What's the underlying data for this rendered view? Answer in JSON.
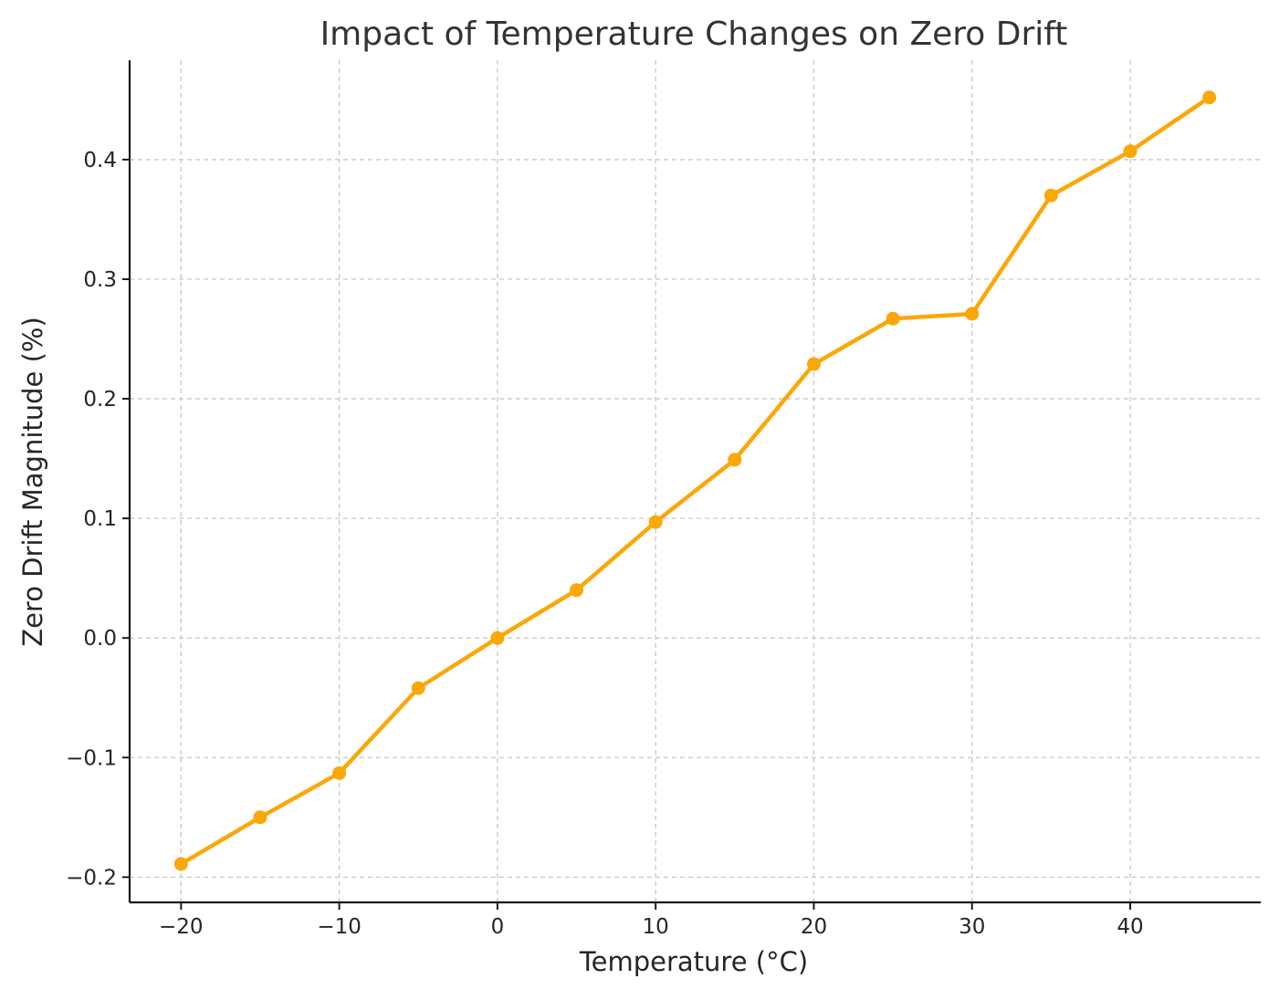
{
  "chart_data": {
    "type": "line",
    "title": "Impact of Temperature Changes on Zero Drift",
    "xlabel": "Temperature (°C)",
    "ylabel": "Zero Drift Magnitude (%)",
    "x": [
      -20,
      -15,
      -10,
      -5,
      0,
      5,
      10,
      15,
      20,
      25,
      30,
      35,
      40,
      45
    ],
    "series": [
      {
        "values": [
          -0.189,
          -0.15,
          -0.113,
          -0.042,
          0.0,
          0.04,
          0.097,
          0.149,
          0.229,
          0.267,
          0.271,
          0.37,
          0.407,
          0.452
        ],
        "color": "#FAA70A",
        "marker": "circle"
      }
    ],
    "xlim": [
      -23.25,
      48.25
    ],
    "ylim": [
      -0.2211,
      0.4831
    ],
    "xticks": [
      -20,
      -10,
      0,
      10,
      20,
      30,
      40
    ],
    "xtick_labels": [
      "−20",
      "−10",
      "0",
      "10",
      "20",
      "30",
      "40"
    ],
    "yticks": [
      -0.2,
      -0.1,
      0.0,
      0.1,
      0.2,
      0.3,
      0.4
    ],
    "ytick_labels": [
      "−0.2",
      "−0.1",
      "0.0",
      "0.1",
      "0.2",
      "0.3",
      "0.4"
    ],
    "grid": true,
    "grid_style": "dashed",
    "spines": [
      "left",
      "bottom"
    ]
  }
}
